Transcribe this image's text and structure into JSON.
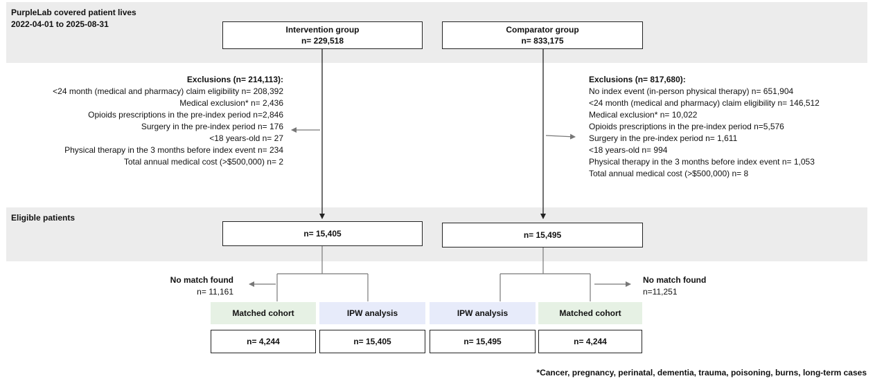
{
  "header": {
    "title": "PurpleLab covered patient lives",
    "date_range": "2022-04-01 to 2025-08-31"
  },
  "intervention": {
    "title": "Intervention group",
    "n": "n= 229,518",
    "exclusions_title": "Exclusions (n= 214,113):",
    "exclusions": [
      "<24 month (medical and pharmacy) claim eligibility n= 208,392",
      "Medical exclusion* n= 2,436",
      "Opioids prescriptions in the pre-index period n=2,846",
      "Surgery in the pre-index period n= 176",
      "<18 years-old n= 27",
      "Physical therapy in the 3 months before index event n= 234",
      "Total annual medical cost (>$500,000) n= 2"
    ],
    "eligible_n": "n= 15,405",
    "no_match_title": "No match found",
    "no_match_n": "n= 11,161",
    "matched_label": "Matched cohort",
    "matched_n": "n= 4,244",
    "ipw_label": "IPW analysis",
    "ipw_n": "n= 15,405"
  },
  "comparator": {
    "title": "Comparator group",
    "n": "n= 833,175",
    "exclusions_title": "Exclusions (n= 817,680):",
    "exclusions": [
      "No index event (in-person physical therapy)  n= 651,904",
      "<24 month (medical and pharmacy) claim eligibility n= 146,512",
      "Medical exclusion* n= 10,022",
      "Opioids prescriptions in the pre-index period n=5,576",
      "Surgery in the pre-index period n= 1,611",
      "<18 years-old n= 994",
      "Physical therapy in the 3 months before index event n= 1,053",
      "Total annual medical cost (>$500,000) n= 8"
    ],
    "eligible_n": "n= 15,495",
    "no_match_title": "No match found",
    "no_match_n": "n=11,251",
    "matched_label": "Matched cohort",
    "matched_n": "n= 4,244",
    "ipw_label": "IPW analysis",
    "ipw_n": "n= 15,495"
  },
  "eligible_label": "Eligible patients",
  "footnote": "*Cancer, pregnancy, perinatal, dementia, trauma, poisoning, burns, long-term cases"
}
